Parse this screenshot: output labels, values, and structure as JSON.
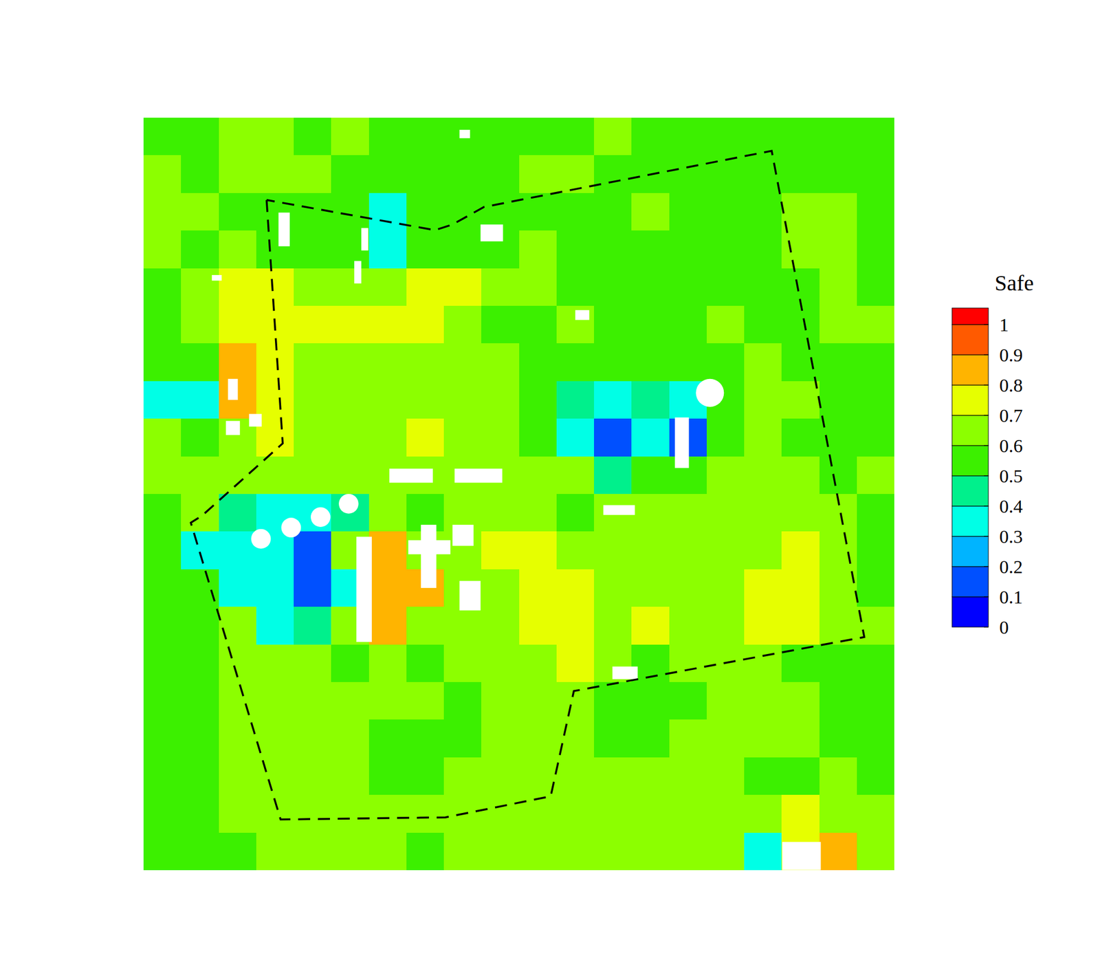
{
  "chart_data": {
    "type": "heatmap",
    "colorbar_label": "Safe",
    "tick_labels": false,
    "colorbar_range": [
      0,
      1
    ],
    "colorbar_ticks": [
      0,
      0.1,
      0.2,
      0.3,
      0.4,
      0.5,
      0.6,
      0.7,
      0.8,
      0.9,
      1
    ],
    "cells": [
      [
        0.55,
        0.55,
        0.65,
        0.65,
        0.55,
        0.65,
        0.55,
        0.55,
        0.55,
        0.55,
        0.55,
        0.55,
        0.65,
        0.55,
        0.55,
        0.55,
        0.55,
        0.55,
        0.55,
        0.55
      ],
      [
        0.65,
        0.55,
        0.65,
        0.65,
        0.65,
        0.55,
        0.55,
        0.55,
        0.55,
        0.55,
        0.65,
        0.65,
        0.55,
        0.55,
        0.55,
        0.55,
        0.55,
        0.55,
        0.55,
        0.55
      ],
      [
        0.65,
        0.65,
        0.55,
        0.55,
        0.55,
        0.55,
        0.35,
        0.55,
        0.55,
        0.55,
        0.55,
        0.55,
        0.55,
        0.65,
        0.55,
        0.55,
        0.55,
        0.65,
        0.65,
        0.55
      ],
      [
        0.65,
        0.55,
        0.65,
        0.55,
        0.55,
        0.55,
        0.35,
        0.55,
        0.55,
        0.55,
        0.65,
        0.55,
        0.55,
        0.55,
        0.55,
        0.55,
        0.55,
        0.65,
        0.65,
        0.55
      ],
      [
        0.55,
        0.65,
        0.75,
        0.75,
        0.65,
        0.65,
        0.65,
        0.75,
        0.75,
        0.65,
        0.65,
        0.55,
        0.55,
        0.55,
        0.55,
        0.55,
        0.55,
        0.55,
        0.65,
        0.55
      ],
      [
        0.55,
        0.65,
        0.75,
        0.75,
        0.75,
        0.75,
        0.75,
        0.75,
        0.65,
        0.55,
        0.55,
        0.65,
        0.55,
        0.55,
        0.55,
        0.65,
        0.55,
        0.55,
        0.65,
        0.65
      ],
      [
        0.55,
        0.55,
        0.85,
        0.75,
        0.65,
        0.65,
        0.65,
        0.65,
        0.65,
        0.65,
        0.55,
        0.55,
        0.55,
        0.55,
        0.55,
        0.55,
        0.65,
        0.55,
        0.55,
        0.55
      ],
      [
        0.35,
        0.35,
        0.85,
        0.75,
        0.65,
        0.65,
        0.65,
        0.65,
        0.65,
        0.65,
        0.55,
        0.45,
        0.35,
        0.45,
        0.35,
        0.55,
        0.65,
        0.65,
        0.55,
        0.55
      ],
      [
        0.65,
        0.55,
        0.65,
        0.75,
        0.65,
        0.65,
        0.65,
        0.75,
        0.65,
        0.65,
        0.55,
        0.35,
        0.15,
        0.35,
        0.15,
        0.55,
        0.65,
        0.55,
        0.55,
        0.55
      ],
      [
        0.65,
        0.65,
        0.65,
        0.65,
        0.65,
        0.65,
        0.65,
        0.65,
        0.65,
        0.65,
        0.65,
        0.65,
        0.45,
        0.55,
        0.55,
        0.65,
        0.65,
        0.65,
        0.55,
        0.65
      ],
      [
        0.55,
        0.65,
        0.45,
        0.35,
        0.35,
        0.45,
        0.65,
        0.55,
        0.65,
        0.65,
        0.65,
        0.55,
        0.65,
        0.65,
        0.65,
        0.65,
        0.65,
        0.65,
        0.65,
        0.55
      ],
      [
        0.55,
        0.35,
        0.35,
        0.35,
        0.15,
        0.65,
        0.85,
        0.65,
        0.65,
        0.75,
        0.75,
        0.65,
        0.65,
        0.65,
        0.65,
        0.65,
        0.65,
        0.75,
        0.65,
        0.55
      ],
      [
        0.55,
        0.55,
        0.35,
        0.35,
        0.15,
        0.35,
        0.85,
        0.85,
        0.65,
        0.65,
        0.75,
        0.75,
        0.65,
        0.65,
        0.65,
        0.65,
        0.75,
        0.75,
        0.65,
        0.55
      ],
      [
        0.55,
        0.55,
        0.65,
        0.35,
        0.45,
        0.65,
        0.85,
        0.65,
        0.65,
        0.65,
        0.75,
        0.75,
        0.65,
        0.75,
        0.65,
        0.65,
        0.75,
        0.75,
        0.65,
        0.65
      ],
      [
        0.55,
        0.55,
        0.65,
        0.65,
        0.65,
        0.55,
        0.65,
        0.55,
        0.65,
        0.65,
        0.65,
        0.75,
        0.65,
        0.55,
        0.65,
        0.65,
        0.65,
        0.55,
        0.55,
        0.55
      ],
      [
        0.55,
        0.55,
        0.65,
        0.65,
        0.65,
        0.65,
        0.65,
        0.65,
        0.55,
        0.65,
        0.65,
        0.65,
        0.55,
        0.55,
        0.55,
        0.65,
        0.65,
        0.65,
        0.55,
        0.55
      ],
      [
        0.55,
        0.55,
        0.65,
        0.65,
        0.65,
        0.65,
        0.55,
        0.55,
        0.55,
        0.65,
        0.65,
        0.65,
        0.55,
        0.55,
        0.65,
        0.65,
        0.65,
        0.65,
        0.55,
        0.55
      ],
      [
        0.55,
        0.55,
        0.65,
        0.65,
        0.65,
        0.65,
        0.55,
        0.55,
        0.65,
        0.65,
        0.65,
        0.65,
        0.65,
        0.65,
        0.65,
        0.65,
        0.55,
        0.55,
        0.65,
        0.55
      ],
      [
        0.55,
        0.55,
        0.65,
        0.65,
        0.65,
        0.65,
        0.65,
        0.65,
        0.65,
        0.65,
        0.65,
        0.65,
        0.65,
        0.65,
        0.65,
        0.65,
        0.65,
        0.75,
        0.65,
        0.65
      ],
      [
        0.55,
        0.55,
        0.55,
        0.65,
        0.65,
        0.65,
        0.65,
        0.55,
        0.65,
        0.65,
        0.65,
        0.65,
        0.65,
        0.65,
        0.65,
        0.65,
        0.35,
        0.75,
        0.85,
        0.65
      ]
    ]
  }
}
